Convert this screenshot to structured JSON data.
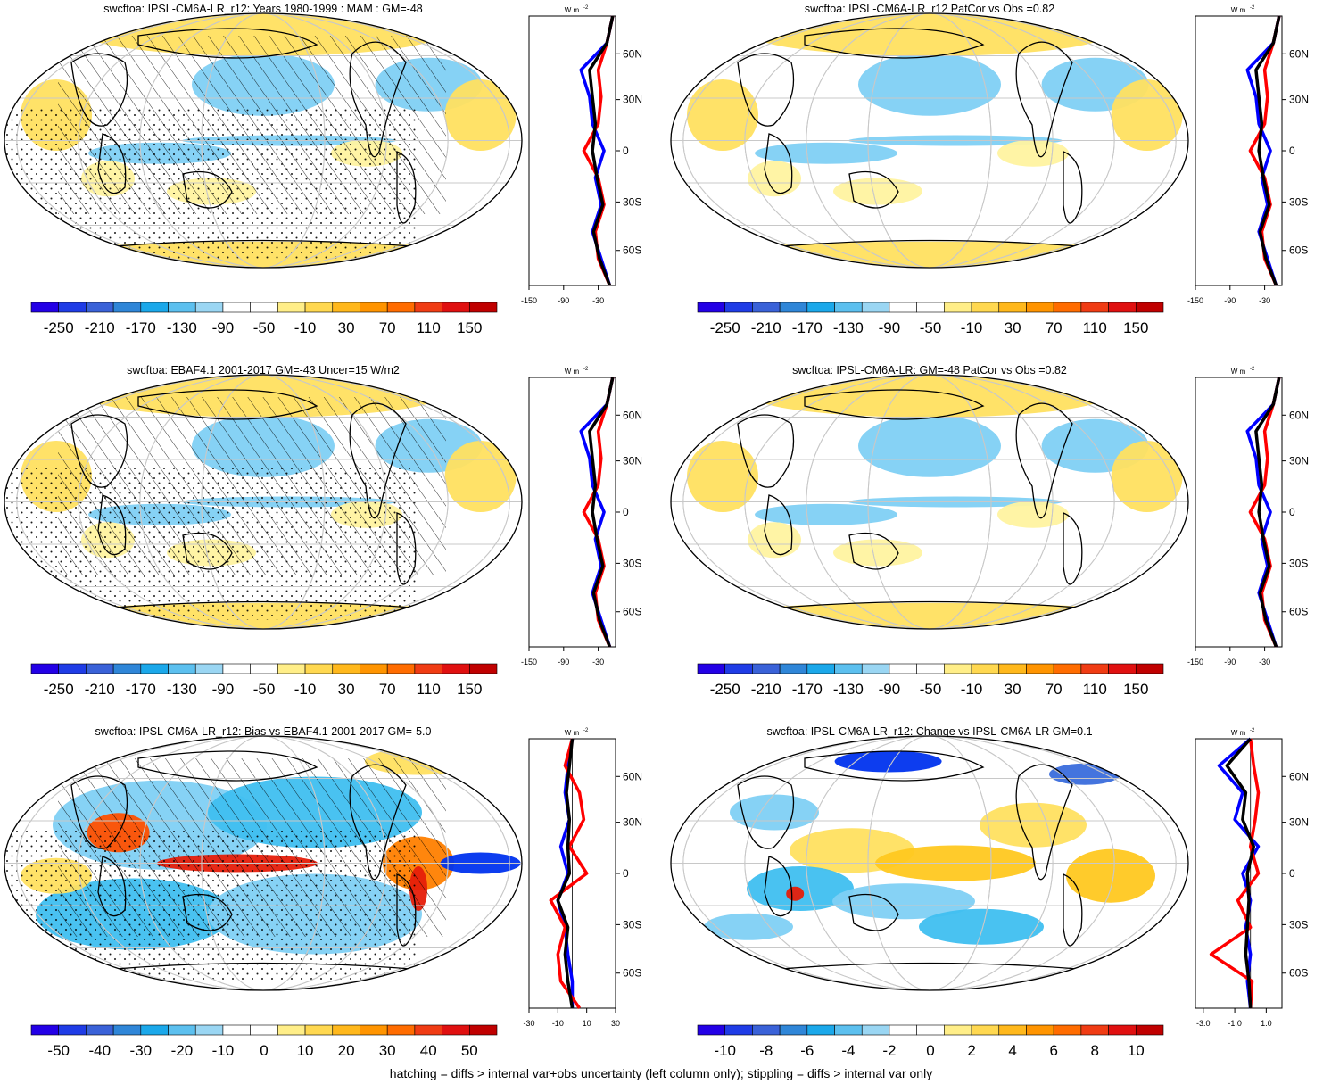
{
  "footer": "hatching = diffs > internal var+obs uncertainty (left column only); stippling = diffs > internal var only",
  "profile_unit": "W m",
  "profile_unit_exp": "-2",
  "lat_labels": [
    "60N",
    "30N",
    "0",
    "30S",
    "60S"
  ],
  "colors": {
    "model": "#0000ff",
    "obs": "#ff0000",
    "other": "#000000",
    "land_outline": "#000000",
    "grid": "#c8c8c8"
  },
  "chart_data": [
    {
      "type": "heatmap",
      "title": "swcftoa: IPSL-CM6A-LR_r12: Years 1980-1999 : MAM : GM=-48",
      "colorbar_ticks": [
        "-250",
        "-210",
        "-170",
        "-130",
        "-90",
        "-50",
        "-10",
        "30",
        "70",
        "110",
        "150"
      ],
      "patterns": {
        "hatching": true,
        "stippling": true
      },
      "profile": {
        "xtick_labels": [
          "-150",
          "-90",
          "-30"
        ],
        "xlim": [
          -150,
          0
        ],
        "series": [
          {
            "color": "blue",
            "values": [
              -5,
              -15,
              -60,
              -45,
              -40,
              -20,
              -35,
              -25,
              -40,
              -25,
              -10
            ]
          },
          {
            "color": "red",
            "values": [
              -5,
              -15,
              -30,
              -25,
              -30,
              -55,
              -30,
              -20,
              -35,
              -30,
              -10
            ]
          },
          {
            "color": "black",
            "values": [
              -5,
              -15,
              -45,
              -40,
              -35,
              -40,
              -32,
              -22,
              -38,
              -28,
              -10
            ]
          }
        ]
      }
    },
    {
      "type": "heatmap",
      "title": "swcftoa: IPSL-CM6A-LR_r12 PatCor vs Obs =0.82",
      "colorbar_ticks": [
        "-250",
        "-210",
        "-170",
        "-130",
        "-90",
        "-50",
        "-10",
        "30",
        "70",
        "110",
        "150"
      ],
      "patterns": {
        "hatching": false,
        "stippling": false
      },
      "profile": {
        "xtick_labels": [
          "-150",
          "-90",
          "-30"
        ],
        "xlim": [
          -150,
          0
        ],
        "series": [
          {
            "color": "blue",
            "values": [
              -5,
              -15,
              -60,
              -45,
              -40,
              -20,
              -35,
              -25,
              -40,
              -25,
              -10
            ]
          },
          {
            "color": "red",
            "values": [
              -5,
              -15,
              -30,
              -25,
              -30,
              -55,
              -30,
              -20,
              -35,
              -30,
              -10
            ]
          },
          {
            "color": "black",
            "values": [
              -5,
              -15,
              -45,
              -40,
              -35,
              -40,
              -32,
              -22,
              -38,
              -28,
              -10
            ]
          }
        ]
      }
    },
    {
      "type": "heatmap",
      "title": "swcftoa: EBAF4.1 2001-2017 GM=-43 Uncer=15 W/m2",
      "colorbar_ticks": [
        "-250",
        "-210",
        "-170",
        "-130",
        "-90",
        "-50",
        "-10",
        "30",
        "70",
        "110",
        "150"
      ],
      "patterns": {
        "hatching": true,
        "stippling": true
      },
      "profile": {
        "xtick_labels": [
          "-150",
          "-90",
          "-30"
        ],
        "xlim": [
          -150,
          0
        ],
        "series": [
          {
            "color": "blue",
            "values": [
              -5,
              -15,
              -60,
              -45,
              -40,
              -20,
              -35,
              -25,
              -40,
              -25,
              -10
            ]
          },
          {
            "color": "red",
            "values": [
              -5,
              -15,
              -30,
              -25,
              -30,
              -55,
              -30,
              -20,
              -35,
              -30,
              -10
            ]
          },
          {
            "color": "black",
            "values": [
              -5,
              -15,
              -45,
              -40,
              -35,
              -40,
              -32,
              -22,
              -38,
              -28,
              -10
            ]
          }
        ]
      }
    },
    {
      "type": "heatmap",
      "title": "swcftoa: IPSL-CM6A-LR: GM=-48 PatCor vs Obs =0.82",
      "colorbar_ticks": [
        "-250",
        "-210",
        "-170",
        "-130",
        "-90",
        "-50",
        "-10",
        "30",
        "70",
        "110",
        "150"
      ],
      "patterns": {
        "hatching": false,
        "stippling": false
      },
      "profile": {
        "xtick_labels": [
          "-150",
          "-90",
          "-30"
        ],
        "xlim": [
          -150,
          0
        ],
        "series": [
          {
            "color": "blue",
            "values": [
              -5,
              -15,
              -60,
              -45,
              -40,
              -20,
              -35,
              -25,
              -40,
              -25,
              -10
            ]
          },
          {
            "color": "red",
            "values": [
              -5,
              -15,
              -30,
              -25,
              -30,
              -55,
              -30,
              -20,
              -35,
              -30,
              -10
            ]
          },
          {
            "color": "black",
            "values": [
              -5,
              -15,
              -45,
              -40,
              -35,
              -40,
              -32,
              -22,
              -38,
              -28,
              -10
            ]
          }
        ]
      }
    },
    {
      "type": "heatmap",
      "title": "swcftoa: IPSL-CM6A-LR_r12: Bias vs EBAF4.1 2001-2017 GM=-5.0",
      "colorbar_ticks": [
        "-50",
        "-40",
        "-30",
        "-20",
        "-10",
        "0",
        "10",
        "20",
        "30",
        "40",
        "50"
      ],
      "patterns": {
        "hatching": true,
        "stippling": true
      },
      "profile": {
        "xtick_labels": [
          "-30",
          "-10",
          "10",
          "30"
        ],
        "xlim": [
          -30,
          30
        ],
        "series": [
          {
            "color": "blue",
            "values": [
              0,
              -3,
              -5,
              -2,
              -8,
              -3,
              -10,
              -5,
              -3,
              0,
              0
            ]
          },
          {
            "color": "red",
            "values": [
              0,
              -5,
              5,
              8,
              -2,
              10,
              -15,
              -5,
              -10,
              -8,
              5
            ]
          },
          {
            "color": "black",
            "values": [
              0,
              -2,
              -4,
              -2,
              -3,
              -2,
              -10,
              -3,
              -5,
              -3,
              0
            ]
          }
        ]
      }
    },
    {
      "type": "heatmap",
      "title": "swcftoa: IPSL-CM6A-LR_r12: Change vs IPSL-CM6A-LR GM=0.1",
      "colorbar_ticks": [
        "-10",
        "-8",
        "-6",
        "-4",
        "-2",
        "0",
        "2",
        "4",
        "6",
        "8",
        "10"
      ],
      "patterns": {
        "hatching": false,
        "stippling": false
      },
      "profile": {
        "xtick_labels": [
          "-3.0",
          "-1.0",
          "1.0"
        ],
        "xlim": [
          -3.5,
          2
        ],
        "series": [
          {
            "color": "blue",
            "values": [
              0,
              -2,
              -0.5,
              -1,
              0.5,
              -0.5,
              0,
              -0.3,
              0,
              -0.2,
              0
            ]
          },
          {
            "color": "red",
            "values": [
              0,
              0.2,
              0.5,
              0.3,
              0,
              0.5,
              -0.8,
              0,
              -2.5,
              0.1,
              0
            ]
          },
          {
            "color": "black",
            "values": [
              0,
              -1.5,
              -0.3,
              -0.5,
              0.2,
              -0.2,
              -0.1,
              -0.2,
              -0.3,
              -0.1,
              0
            ]
          }
        ]
      }
    }
  ]
}
